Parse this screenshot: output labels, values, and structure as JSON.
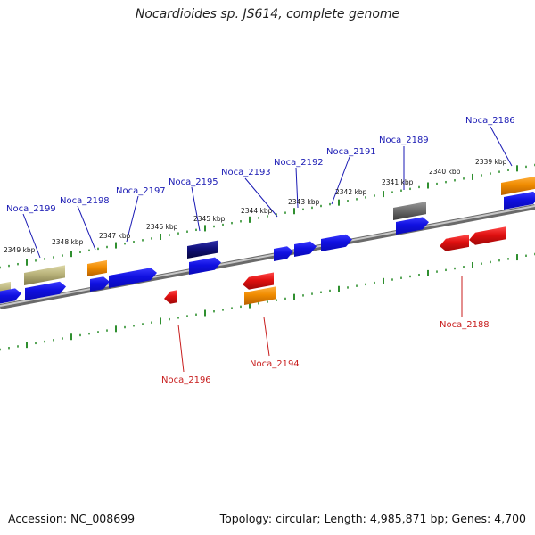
{
  "title": "Nocardioides sp. JS614, complete genome",
  "accession": "Accession: NC_008699",
  "summary": "Topology: circular; Length: 4,985,871 bp; Genes: 4,700",
  "colors": {
    "forward_label": "#1a1ab4",
    "reverse_label": "#c81e1e",
    "backbone": "#8c8c8c",
    "tick_dots": "#2f8f2f",
    "gene_blue": "#1010e0",
    "gene_red": "#e01010",
    "gene_orange": "#f08c00",
    "gene_khaki": "#b8b27a",
    "gene_gray": "#6e6e6e",
    "gene_navy": "#10107a"
  },
  "kbp_labels": [
    "2349 kbp",
    "2348 kbp",
    "2347 kbp",
    "2346 kbp",
    "2345 kbp",
    "2344 kbp",
    "2343 kbp",
    "2342 kbp",
    "2341 kbp",
    "2340 kbp",
    "2339 kbp"
  ],
  "gene_labels_top": [
    "Noca_2199",
    "Noca_2198",
    "Noca_2197",
    "Noca_2195",
    "Noca_2193",
    "Noca_2192",
    "Noca_2191",
    "Noca_2189",
    "Noca_2186"
  ],
  "gene_labels_bottom": [
    "Noca_2196",
    "Noca_2194",
    "Noca_2188"
  ]
}
